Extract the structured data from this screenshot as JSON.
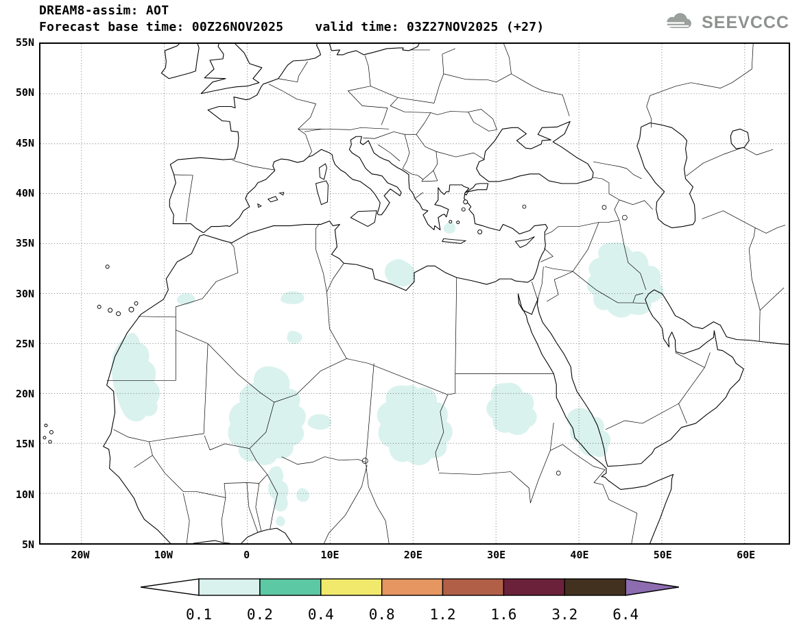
{
  "header": {
    "model_title": "DREAM8-assim: AOT",
    "forecast_base_label": "Forecast base time: 00Z26NOV2025",
    "valid_time_label": "valid time: 03Z27NOV2025 (+27)"
  },
  "logo": {
    "brand": "SEEVCCC"
  },
  "axes": {
    "lat_labels": [
      "55N",
      "50N",
      "45N",
      "40N",
      "35N",
      "30N",
      "25N",
      "20N",
      "15N",
      "10N",
      "5N"
    ],
    "lon_labels": [
      "20W",
      "10W",
      "0",
      "10E",
      "20E",
      "30E",
      "40E",
      "50E",
      "60E"
    ]
  },
  "chart_data": {
    "type": "heatmap",
    "title": "DREAM8-assim: AOT",
    "variable": "AOT (aerosol optical thickness)",
    "model": "DREAM8-assim",
    "forecast_base_time": "00Z26NOV2025",
    "valid_time": "03Z27NOV2025",
    "lead_time_hours": 27,
    "map_extent": {
      "lat_min": "5N",
      "lat_max": "55N",
      "lon_min": "20W",
      "lon_max": "60E"
    },
    "graticule_spacing_deg": {
      "lat": 5,
      "lon": 10
    },
    "colorbar": {
      "levels": [
        "0.1",
        "0.2",
        "0.4",
        "0.8",
        "1.2",
        "1.6",
        "3.2",
        "6.4"
      ],
      "below_min_color": "#ffffff",
      "segment_colors": [
        "#daf2ee",
        "#5cc8a4",
        "#f1e96c",
        "#e59661",
        "#b25f48",
        "#6b2139",
        "#433120"
      ],
      "above_max_color": "#8d6cb0"
    },
    "shaded_regions": [
      {
        "value_range": "0.1 - 0.2",
        "color": "#daf2ee",
        "areas": [
          "Mauritania / Western Sahara coast",
          "Morocco-Algeria border (small)",
          "central Algeria (small)",
          "Mali / Niger / southern Algeria (large)",
          "NE Libya coast near Gulf of Sirte",
          "Chad / western Sudan (large)",
          "central Sudan",
          "southern Red Sea / Eritrea coast",
          "Iraq / Kuwait / northern Saudi Arabia",
          "Nigeria / Benin (small patches)",
          "southern Aegean Sea (small)"
        ]
      }
    ]
  }
}
